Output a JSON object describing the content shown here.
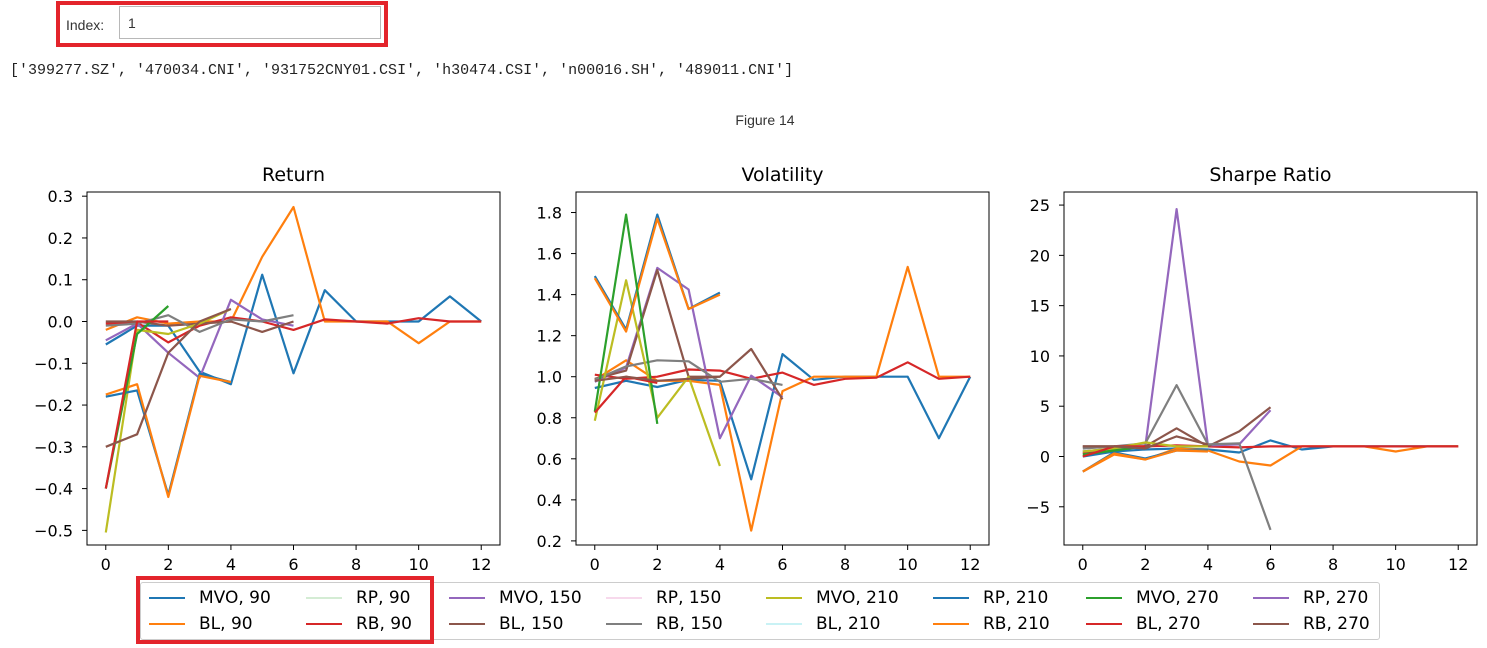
{
  "widget": {
    "index_label": "Index:",
    "index_value": "1"
  },
  "output_text": "['399277.SZ', '470034.CNI', '931752CNY01.CSI', 'h30474.CSI', 'n00016.SH', '489011.CNI']",
  "figure_label": "Figure 14",
  "series_styles": [
    {
      "name": "MVO, 90",
      "color": "#1f77b4"
    },
    {
      "name": "BL, 90",
      "color": "#ff7f0e"
    },
    {
      "name": "RP, 90",
      "color": "#d4ecd4"
    },
    {
      "name": "RB, 90",
      "color": "#d62728"
    },
    {
      "name": "MVO, 150",
      "color": "#9467bd"
    },
    {
      "name": "BL, 150",
      "color": "#8c564b"
    },
    {
      "name": "RP, 150",
      "color": "#f7d9ec"
    },
    {
      "name": "RB, 150",
      "color": "#7f7f7f"
    },
    {
      "name": "MVO, 210",
      "color": "#bcbd22"
    },
    {
      "name": "BL, 210",
      "color": "#c9f2f5"
    },
    {
      "name": "RP, 210",
      "color": "#1f77b4"
    },
    {
      "name": "RB, 210",
      "color": "#ff7f0e"
    },
    {
      "name": "MVO, 270",
      "color": "#2ca02c"
    },
    {
      "name": "BL, 270",
      "color": "#d62728"
    },
    {
      "name": "RP, 270",
      "color": "#9467bd"
    },
    {
      "name": "RB, 270",
      "color": "#8c564b"
    }
  ],
  "chart_data": [
    {
      "type": "line",
      "title": "Return",
      "xlim": [
        -0.6,
        12.6
      ],
      "ylim": [
        -0.535,
        0.31
      ],
      "xticks": [
        0,
        2,
        4,
        6,
        8,
        10,
        12
      ],
      "yticks": [
        0.3,
        0.2,
        0.1,
        0.0,
        -0.1,
        -0.2,
        -0.3,
        -0.4,
        -0.5
      ],
      "ytick_labels": [
        "0.3",
        "0.2",
        "0.1",
        "0.0",
        "−0.1",
        "−0.2",
        "−0.3",
        "−0.4",
        "−0.5"
      ],
      "series": [
        {
          "name": "MVO, 90",
          "values": [
            -0.055,
            -0.01,
            -0.01,
            -0.12,
            -0.15,
            0.112,
            -0.124,
            0.075,
            0.0,
            0.0,
            0.0,
            0.06,
            0.0
          ]
        },
        {
          "name": "BL, 90",
          "values": [
            -0.02,
            0.01,
            -0.005,
            0.0,
            0.0,
            0.155,
            0.274,
            0.0,
            0.0,
            0.0,
            -0.052,
            0.0,
            0.0
          ]
        },
        {
          "name": "RB, 90",
          "values": [
            -0.005,
            -0.002,
            -0.05,
            -0.01,
            0.01,
            0.0,
            -0.02,
            0.005,
            0.0,
            -0.005,
            0.008,
            0.0,
            0.0
          ]
        },
        {
          "name": "MVO, 150",
          "values": [
            -0.045,
            -0.005,
            -0.075,
            -0.135,
            0.052,
            0.005,
            -0.01
          ]
        },
        {
          "name": "BL, 150",
          "values": [
            0.0,
            0.0,
            -0.01,
            -0.005,
            0.0,
            -0.025,
            0.0
          ]
        },
        {
          "name": "RB, 150",
          "values": [
            -0.01,
            -0.005,
            0.015,
            -0.025,
            0.005,
            0.0,
            0.015
          ]
        },
        {
          "name": "MVO, 210",
          "values": [
            -0.505,
            -0.02,
            -0.03,
            -0.005,
            0.03
          ]
        },
        {
          "name": "RP, 210",
          "values": [
            -0.18,
            -0.165,
            -0.415,
            -0.125,
            -0.145
          ]
        },
        {
          "name": "RB, 210",
          "values": [
            -0.175,
            -0.15,
            -0.42,
            -0.13,
            -0.145
          ]
        },
        {
          "name": "MVO, 270",
          "values": [
            -0.4,
            -0.03,
            0.037
          ]
        },
        {
          "name": "BL, 270",
          "values": [
            -0.4,
            0.0,
            0.0
          ]
        },
        {
          "name": "RB, 270",
          "values": [
            -0.3,
            -0.27,
            -0.075,
            0.0,
            0.03
          ]
        }
      ]
    },
    {
      "type": "line",
      "title": "Volatility",
      "xlim": [
        -0.6,
        12.6
      ],
      "ylim": [
        0.18,
        1.9
      ],
      "xticks": [
        0,
        2,
        4,
        6,
        8,
        10,
        12
      ],
      "yticks": [
        1.8,
        1.6,
        1.4,
        1.2,
        1.0,
        0.8,
        0.6,
        0.4,
        0.2
      ],
      "ytick_labels": [
        "1.8",
        "1.6",
        "1.4",
        "1.2",
        "1.0",
        "0.8",
        "0.6",
        "0.4",
        "0.2"
      ],
      "series": [
        {
          "name": "MVO, 90",
          "values": [
            0.945,
            0.98,
            0.95,
            0.985,
            0.98,
            0.5,
            1.11,
            0.985,
            1.0,
            1.0,
            1.0,
            0.7,
            1.0
          ]
        },
        {
          "name": "BL, 90",
          "values": [
            0.985,
            1.08,
            0.98,
            0.98,
            0.96,
            0.25,
            0.93,
            1.0,
            1.0,
            1.0,
            1.535,
            1.0,
            1.0
          ]
        },
        {
          "name": "RB, 90",
          "values": [
            1.01,
            0.99,
            1.0,
            1.035,
            1.03,
            0.99,
            1.02,
            0.96,
            0.99,
            0.995,
            1.07,
            0.99,
            1.0
          ]
        },
        {
          "name": "MVO, 150",
          "values": [
            0.975,
            1.045,
            1.53,
            1.425,
            0.7,
            1.005,
            0.9
          ]
        },
        {
          "name": "BL, 150",
          "values": [
            0.99,
            1.03,
            1.52,
            1.0,
            1.0,
            1.135,
            0.89
          ]
        },
        {
          "name": "RB, 150",
          "values": [
            0.985,
            1.05,
            1.08,
            1.075,
            0.975,
            0.99,
            0.96
          ]
        },
        {
          "name": "MVO, 210",
          "values": [
            0.785,
            1.47,
            0.8,
            1.0,
            0.565
          ]
        },
        {
          "name": "RP, 210",
          "values": [
            1.49,
            1.23,
            1.79,
            1.33,
            1.41
          ]
        },
        {
          "name": "RB, 210",
          "values": [
            1.48,
            1.22,
            1.77,
            1.33,
            1.4
          ]
        },
        {
          "name": "MVO, 270",
          "values": [
            0.83,
            1.79,
            0.77
          ]
        },
        {
          "name": "BL, 270",
          "values": [
            0.825,
            1.0,
            0.97
          ]
        },
        {
          "name": "RB, 270",
          "values": [
            0.98,
            1.0,
            0.98,
            0.99,
            1.0
          ]
        }
      ]
    },
    {
      "type": "line",
      "title": "Sharpe Ratio",
      "xlim": [
        -0.6,
        12.6
      ],
      "ylim": [
        -8.8,
        26.3
      ],
      "xticks": [
        0,
        2,
        4,
        6,
        8,
        10,
        12
      ],
      "yticks": [
        25,
        20,
        15,
        10,
        5,
        0,
        -5
      ],
      "ytick_labels": [
        "25",
        "20",
        "15",
        "10",
        "5",
        "0",
        "−5"
      ],
      "series": [
        {
          "name": "MVO, 90",
          "values": [
            0.0,
            0.5,
            0.7,
            0.8,
            0.7,
            0.4,
            1.6,
            0.7,
            1.0,
            1.0,
            1.0,
            1.0,
            1.0
          ]
        },
        {
          "name": "BL, 90",
          "values": [
            -1.5,
            0.2,
            -0.3,
            0.8,
            0.6,
            -0.5,
            -0.9,
            1.0,
            1.0,
            1.0,
            0.5,
            1.0,
            1.0
          ]
        },
        {
          "name": "RB, 90",
          "values": [
            0.3,
            0.8,
            1.0,
            1.1,
            1.0,
            0.9,
            1.0,
            1.0,
            1.0,
            1.0,
            1.0,
            1.0,
            1.0
          ]
        },
        {
          "name": "MVO, 150",
          "values": [
            0.5,
            0.8,
            1.0,
            24.6,
            1.1,
            1.2,
            4.6
          ]
        },
        {
          "name": "BL, 150",
          "values": [
            1.0,
            1.0,
            1.0,
            2.8,
            1.0,
            2.5,
            4.9
          ]
        },
        {
          "name": "RB, 150",
          "values": [
            0.8,
            1.0,
            1.3,
            7.1,
            1.2,
            1.3,
            -7.3
          ]
        },
        {
          "name": "MVO, 210",
          "values": [
            0.5,
            0.8,
            1.4,
            1.0,
            1.0
          ]
        },
        {
          "name": "RP, 210",
          "values": [
            -1.5,
            0.4,
            -0.2,
            0.6,
            0.6
          ]
        },
        {
          "name": "RB, 210",
          "values": [
            -1.5,
            0.3,
            -0.3,
            0.6,
            0.5
          ]
        },
        {
          "name": "MVO, 270",
          "values": [
            0.2,
            0.6,
            1.0
          ]
        },
        {
          "name": "BL, 270",
          "values": [
            0.0,
            1.0,
            1.0
          ]
        },
        {
          "name": "RB, 270",
          "values": [
            1.0,
            1.0,
            0.8,
            2.0,
            1.2
          ]
        }
      ]
    }
  ]
}
